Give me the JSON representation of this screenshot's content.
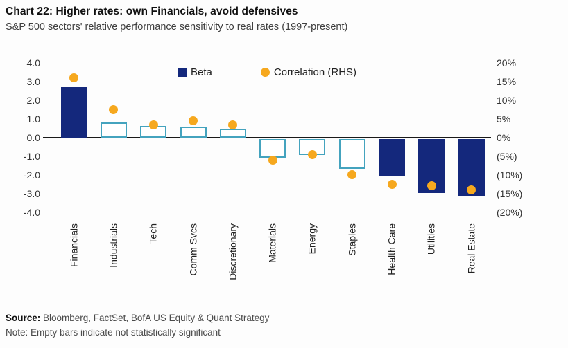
{
  "header": {
    "title": "Chart 22: Higher rates: own Financials, avoid defensives",
    "subtitle": "S&P 500 sectors' relative performance sensitivity to real rates (1997-present)"
  },
  "legend": {
    "beta_label": "Beta",
    "correlation_label": "Correlation (RHS)"
  },
  "footer": {
    "source_label": "Source:",
    "source_text": " Bloomberg, FactSet, BofA US Equity & Quant Strategy",
    "note_text": "Note: Empty bars indicate not statistically significant"
  },
  "colors": {
    "navy_bar": "#14287C",
    "empty_bar_outline": "#44A3BE",
    "correlation_dot": "#F6A81E",
    "axis_line": "#1a1a1a"
  },
  "chart_data": {
    "type": "bar",
    "subtype": "combo-bar-scatter-dual-axis",
    "title": "Chart 22: Higher rates: own Financials, avoid defensives",
    "subtitle": "S&P 500 sectors' relative performance sensitivity to real rates (1997-present)",
    "categories": [
      "Financials",
      "Industrials",
      "Tech",
      "Comm Svcs",
      "Discretionary",
      "Materials",
      "Energy",
      "Staples",
      "Health Care",
      "Utilities",
      "Real Estate"
    ],
    "series": [
      {
        "name": "Beta",
        "type": "bar",
        "axis": "left",
        "values": [
          2.7,
          0.8,
          0.65,
          0.6,
          0.5,
          -1.0,
          -0.85,
          -1.6,
          -2.0,
          -2.9,
          -3.1
        ],
        "statistically_significant": [
          true,
          false,
          false,
          false,
          false,
          false,
          false,
          false,
          true,
          true,
          true
        ]
      },
      {
        "name": "Correlation (RHS)",
        "type": "scatter",
        "axis": "right",
        "values_pct": [
          16,
          7.5,
          3.5,
          4.5,
          3.5,
          -6,
          -4.5,
          -10,
          -12.5,
          -13,
          -14
        ]
      }
    ],
    "left_axis": {
      "ticks": [
        "4.0",
        "3.0",
        "2.0",
        "1.0",
        "0.0",
        "-1.0",
        "-2.0",
        "-3.0",
        "-4.0"
      ],
      "min": -4.0,
      "max": 4.0
    },
    "right_axis": {
      "ticks": [
        "20%",
        "15%",
        "10%",
        "5%",
        "0%",
        "(5%)",
        "(10%)",
        "(15%)",
        "(20%)"
      ],
      "min": -20,
      "max": 20
    },
    "legend_position": "top-inside",
    "grid": false,
    "note": "Empty bars indicate not statistically significant"
  }
}
